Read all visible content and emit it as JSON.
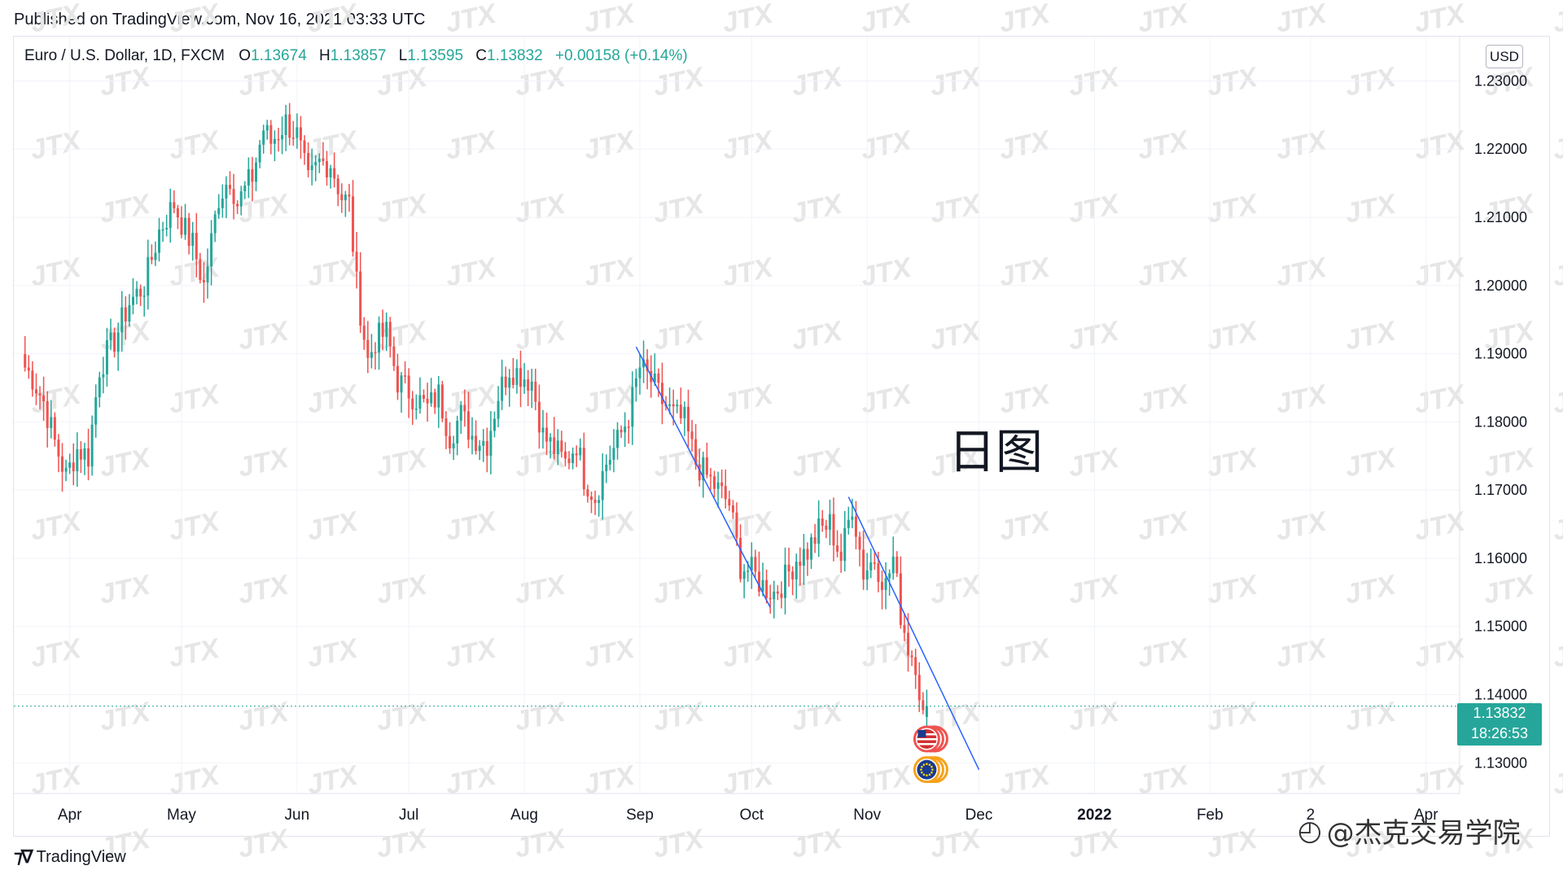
{
  "published": "Published on TradingView.com, Nov 16, 2021 03:33 UTC",
  "header": {
    "symbol": "Euro / U.S. Dollar, 1D, FXCM",
    "open_label": "O",
    "open": "1.13674",
    "high_label": "H",
    "high": "1.13857",
    "low_label": "L",
    "low": "1.13595",
    "close_label": "C",
    "close": "1.13832",
    "change": "+0.00158 (+0.14%)"
  },
  "currency": "USD",
  "price_tag": {
    "price": "1.13832",
    "countdown": "18:26:53"
  },
  "overlay_text": "日图",
  "watermark_text": "JTX",
  "logo_text": "TradingView",
  "credit_text": "@杰克交易学院",
  "colors": {
    "up": "#26a69a",
    "down": "#ef5350",
    "trendline": "#2962ff",
    "grid": "#f0f3fa",
    "text": "#131722"
  },
  "chart_data": {
    "type": "candlestick",
    "title": "",
    "xlabel": "",
    "ylabel": "",
    "ylim": [
      1.1255,
      1.2365
    ],
    "y_ticks": [
      "1.13000",
      "1.14000",
      "1.15000",
      "1.16000",
      "1.17000",
      "1.18000",
      "1.19000",
      "1.20000",
      "1.21000",
      "1.22000",
      "1.23000"
    ],
    "x_ticks": [
      {
        "label": "Apr",
        "day": 12
      },
      {
        "label": "May",
        "day": 42
      },
      {
        "label": "Jun",
        "day": 73
      },
      {
        "label": "Jul",
        "day": 103
      },
      {
        "label": "Aug",
        "day": 134
      },
      {
        "label": "Sep",
        "day": 165
      },
      {
        "label": "Oct",
        "day": 195
      },
      {
        "label": "Nov",
        "day": 226
      },
      {
        "label": "Dec",
        "day": 256
      },
      {
        "label": "2022",
        "day": 287
      },
      {
        "label": "Feb",
        "day": 318
      },
      {
        "label": "2",
        "day": 345
      },
      {
        "label": "Apr",
        "day": 376
      }
    ],
    "x_range_days": [
      -3,
      385
    ],
    "anchor_closes": [
      [
        0,
        1.188
      ],
      [
        2,
        1.1865
      ],
      [
        5,
        1.183
      ],
      [
        8,
        1.177
      ],
      [
        11,
        1.172
      ],
      [
        14,
        1.176
      ],
      [
        17,
        1.175
      ],
      [
        20,
        1.188
      ],
      [
        24,
        1.192
      ],
      [
        28,
        1.1975
      ],
      [
        32,
        1.2
      ],
      [
        36,
        1.208
      ],
      [
        40,
        1.212
      ],
      [
        43,
        1.208
      ],
      [
        45,
        1.206
      ],
      [
        48,
        1.2
      ],
      [
        52,
        1.213
      ],
      [
        55,
        1.216
      ],
      [
        57,
        1.212
      ],
      [
        61,
        1.216
      ],
      [
        64,
        1.223
      ],
      [
        66,
        1.221
      ],
      [
        70,
        1.224
      ],
      [
        73,
        1.222
      ],
      [
        76,
        1.215
      ],
      [
        79,
        1.218
      ],
      [
        82,
        1.218
      ],
      [
        85,
        1.213
      ],
      [
        87,
        1.212
      ],
      [
        89,
        1.2
      ],
      [
        92,
        1.189
      ],
      [
        94,
        1.192
      ],
      [
        97,
        1.193
      ],
      [
        100,
        1.186
      ],
      [
        104,
        1.184
      ],
      [
        108,
        1.182
      ],
      [
        111,
        1.184
      ],
      [
        114,
        1.178
      ],
      [
        117,
        1.181
      ],
      [
        120,
        1.178
      ],
      [
        124,
        1.177
      ],
      [
        127,
        1.184
      ],
      [
        130,
        1.188
      ],
      [
        133,
        1.187
      ],
      [
        136,
        1.186
      ],
      [
        139,
        1.178
      ],
      [
        142,
        1.176
      ],
      [
        145,
        1.174
      ],
      [
        148,
        1.177
      ],
      [
        150,
        1.172
      ],
      [
        153,
        1.169
      ],
      [
        156,
        1.174
      ],
      [
        159,
        1.177
      ],
      [
        162,
        1.181
      ],
      [
        165,
        1.188
      ],
      [
        168,
        1.186
      ],
      [
        171,
        1.183
      ],
      [
        174,
        1.181
      ],
      [
        177,
        1.18
      ],
      [
        180,
        1.174
      ],
      [
        183,
        1.172
      ],
      [
        186,
        1.17
      ],
      [
        189,
        1.168
      ],
      [
        192,
        1.159
      ],
      [
        195,
        1.158
      ],
      [
        198,
        1.156
      ],
      [
        201,
        1.155
      ],
      [
        204,
        1.157
      ],
      [
        207,
        1.16
      ],
      [
        210,
        1.161
      ],
      [
        213,
        1.164
      ],
      [
        216,
        1.165
      ],
      [
        219,
        1.16
      ],
      [
        222,
        1.168
      ],
      [
        225,
        1.158
      ],
      [
        228,
        1.16
      ],
      [
        231,
        1.156
      ],
      [
        233,
        1.16
      ],
      [
        235,
        1.152
      ],
      [
        237,
        1.147
      ],
      [
        239,
        1.145
      ],
      [
        241,
        1.1367
      ],
      [
        242,
        1.1383
      ]
    ],
    "trendlines": [
      {
        "start": {
          "day": 164,
          "price": 1.191
        },
        "end": {
          "day": 200,
          "price": 1.1528
        }
      },
      {
        "start": {
          "day": 221,
          "price": 1.169
        },
        "end": {
          "day": 256,
          "price": 1.129
        }
      }
    ],
    "last_price": 1.13832,
    "event_markers": [
      {
        "day": 242,
        "price": 1.1335,
        "icon": "us-flag-icon"
      },
      {
        "day": 242,
        "price": 1.129,
        "icon": "eu-flag-icon"
      }
    ]
  }
}
